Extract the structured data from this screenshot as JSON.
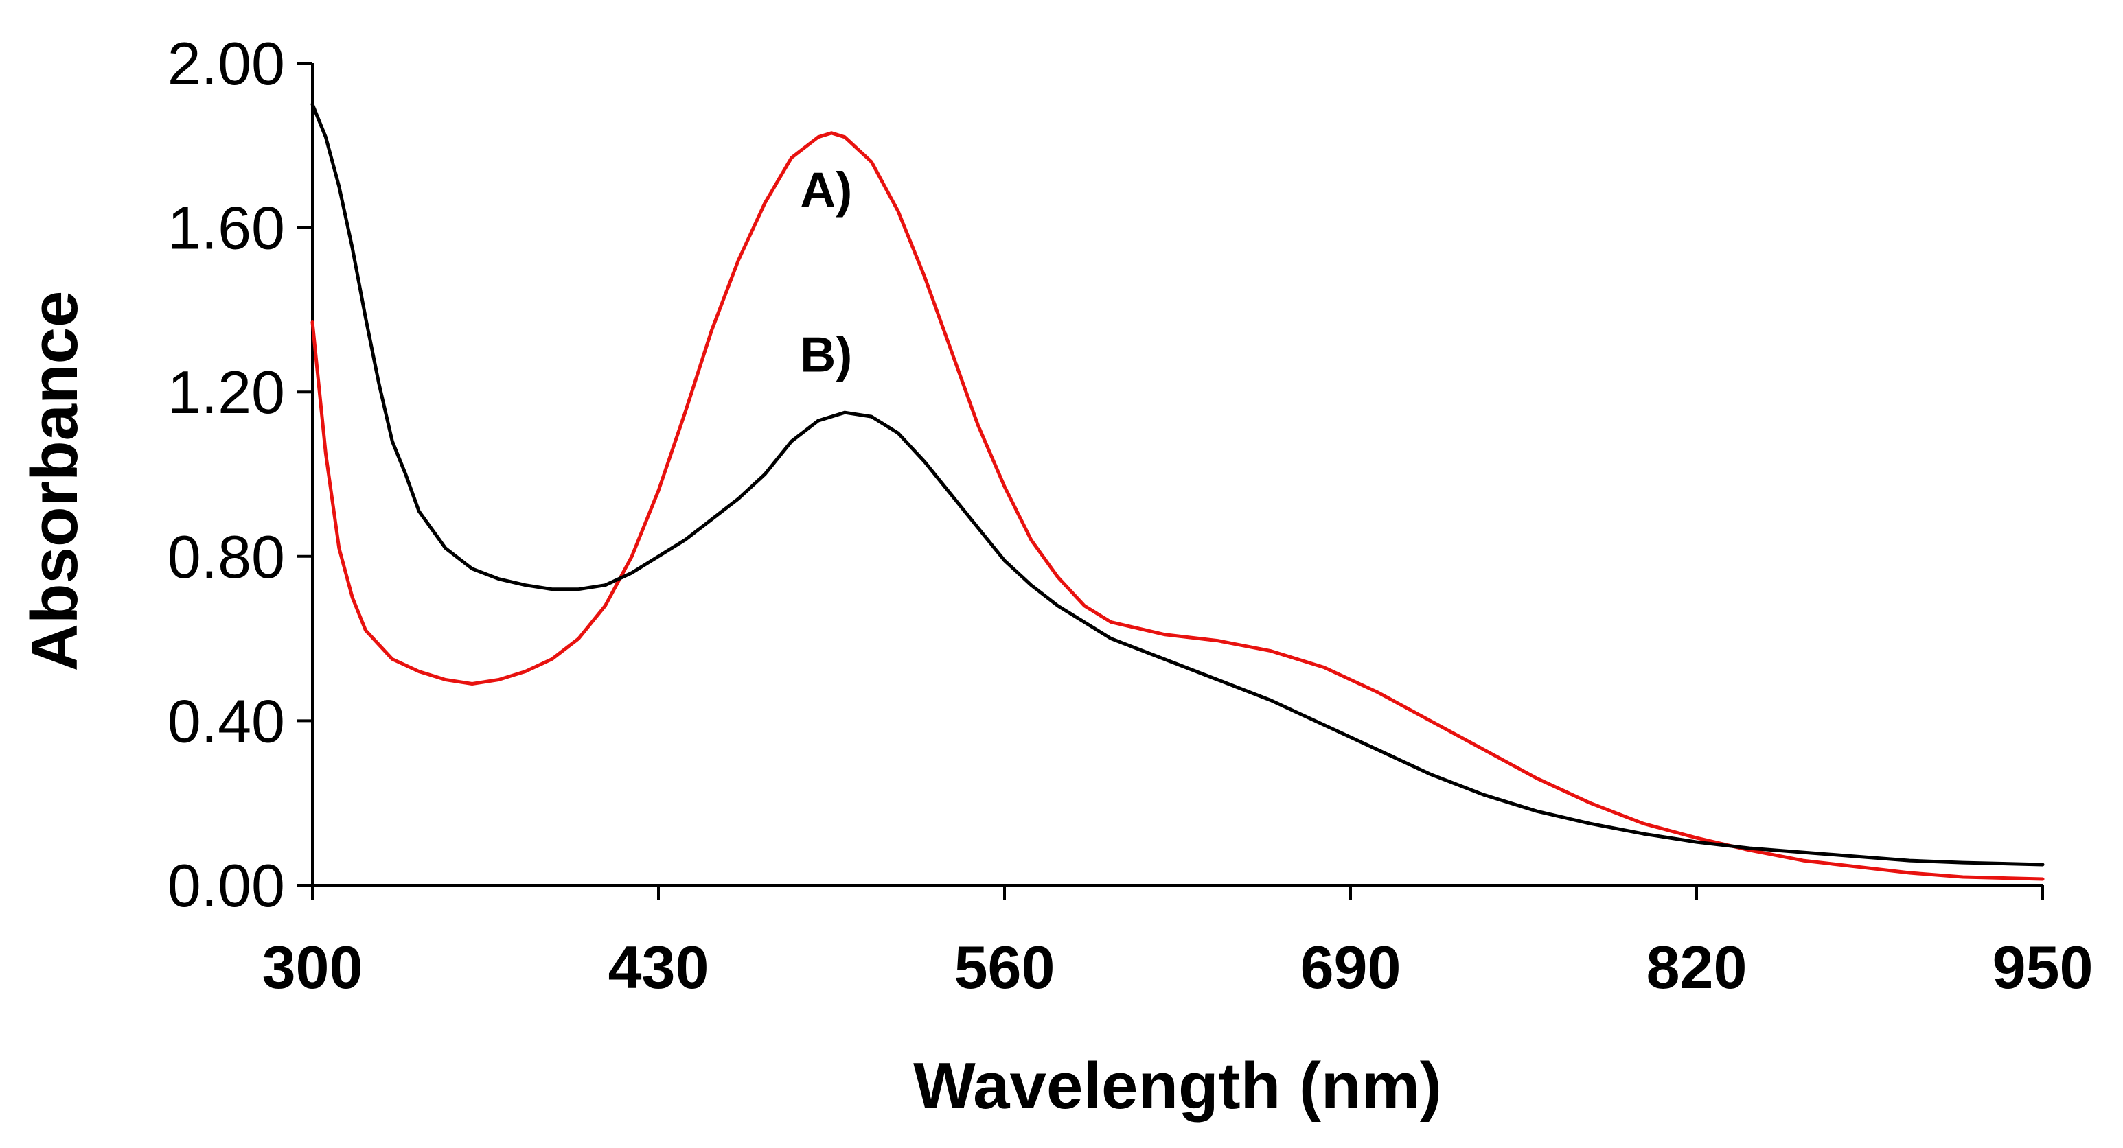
{
  "chart_data": {
    "type": "line",
    "title": "",
    "xlabel": "Wavelength (nm)",
    "ylabel": "Absorbance",
    "xlim": [
      300,
      950
    ],
    "ylim": [
      0,
      2
    ],
    "xticks": [
      300,
      430,
      560,
      690,
      820,
      950
    ],
    "xtick_labels": [
      "300",
      "430",
      "560",
      "690",
      "820",
      "950"
    ],
    "yticks": [
      0,
      0.4,
      0.8,
      1.2,
      1.6,
      2.0
    ],
    "ytick_labels": [
      "0.00",
      "0.40",
      "0.80",
      "1.20",
      "1.60",
      "2.00"
    ],
    "grid": false,
    "legend": "none",
    "series": [
      {
        "name": "A)",
        "color": "#e8120f",
        "x": [
          300,
          305,
          310,
          315,
          320,
          330,
          340,
          350,
          360,
          370,
          380,
          390,
          400,
          410,
          420,
          430,
          440,
          450,
          460,
          470,
          480,
          490,
          495,
          500,
          510,
          520,
          530,
          540,
          550,
          560,
          570,
          580,
          590,
          600,
          620,
          640,
          660,
          680,
          700,
          720,
          740,
          760,
          780,
          800,
          820,
          840,
          860,
          880,
          900,
          920,
          950
        ],
        "y": [
          1.37,
          1.05,
          0.82,
          0.7,
          0.62,
          0.55,
          0.52,
          0.5,
          0.49,
          0.5,
          0.52,
          0.55,
          0.6,
          0.68,
          0.8,
          0.96,
          1.15,
          1.35,
          1.52,
          1.66,
          1.77,
          1.82,
          1.83,
          1.82,
          1.76,
          1.64,
          1.48,
          1.3,
          1.12,
          0.97,
          0.84,
          0.75,
          0.68,
          0.64,
          0.61,
          0.595,
          0.57,
          0.53,
          0.47,
          0.4,
          0.33,
          0.26,
          0.2,
          0.15,
          0.115,
          0.085,
          0.06,
          0.045,
          0.03,
          0.02,
          0.015
        ]
      },
      {
        "name": "B)",
        "color": "#000000",
        "x": [
          300,
          305,
          310,
          315,
          320,
          325,
          330,
          335,
          340,
          350,
          360,
          370,
          380,
          390,
          400,
          410,
          420,
          430,
          440,
          450,
          460,
          470,
          480,
          490,
          500,
          510,
          520,
          530,
          540,
          550,
          560,
          570,
          580,
          600,
          620,
          640,
          660,
          680,
          700,
          720,
          740,
          760,
          780,
          800,
          820,
          840,
          860,
          880,
          900,
          920,
          950
        ],
        "y": [
          1.9,
          1.82,
          1.7,
          1.55,
          1.38,
          1.22,
          1.08,
          1.0,
          0.91,
          0.82,
          0.77,
          0.745,
          0.73,
          0.72,
          0.72,
          0.73,
          0.76,
          0.8,
          0.84,
          0.89,
          0.94,
          1.0,
          1.08,
          1.13,
          1.15,
          1.14,
          1.1,
          1.03,
          0.95,
          0.87,
          0.79,
          0.73,
          0.68,
          0.6,
          0.55,
          0.5,
          0.45,
          0.39,
          0.33,
          0.27,
          0.22,
          0.18,
          0.15,
          0.125,
          0.105,
          0.09,
          0.08,
          0.07,
          0.06,
          0.055,
          0.05
        ]
      }
    ],
    "annotations": [
      {
        "text": "A)",
        "x": 493,
        "y": 1.65
      },
      {
        "text": "B)",
        "x": 493,
        "y": 1.25
      }
    ]
  }
}
